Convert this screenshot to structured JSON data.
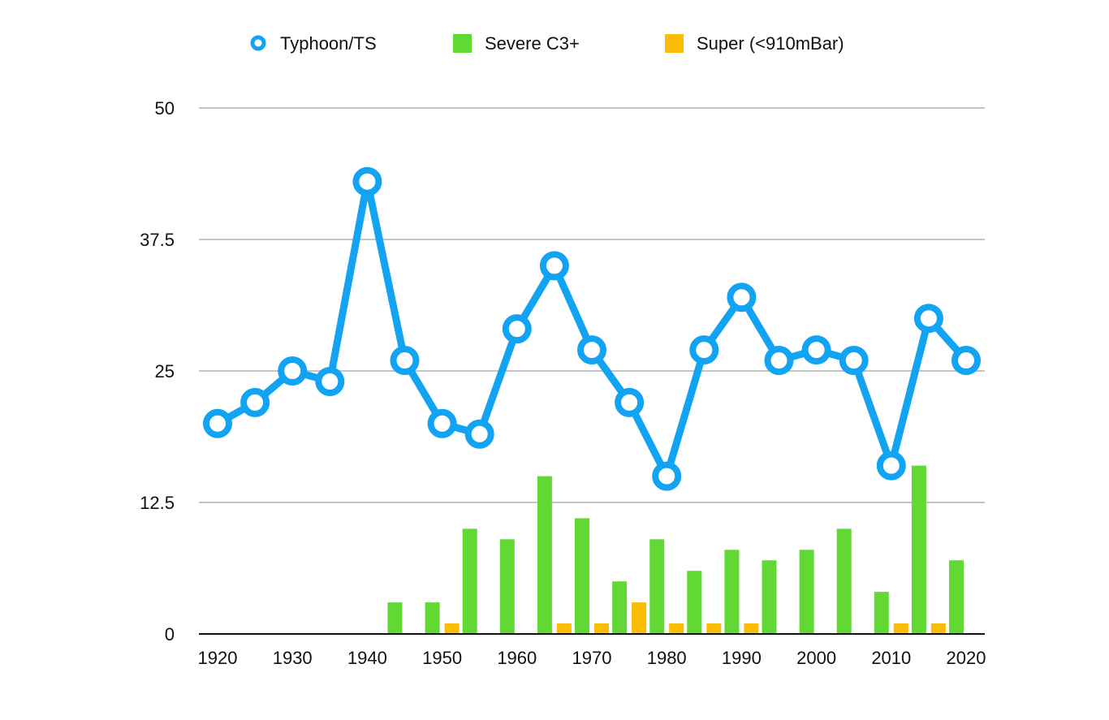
{
  "chart_data": {
    "type": "bar",
    "x": [
      1920,
      1925,
      1930,
      1935,
      1940,
      1945,
      1950,
      1955,
      1960,
      1965,
      1970,
      1975,
      1980,
      1985,
      1990,
      1995,
      2000,
      2005,
      2010,
      2015,
      2020
    ],
    "x_tick_labels": [
      "1920",
      "1930",
      "1940",
      "1950",
      "1960",
      "1970",
      "1980",
      "1990",
      "2000",
      "2010",
      "2020"
    ],
    "y_tick_labels": [
      "0",
      "12.5",
      "25",
      "37.5",
      "50"
    ],
    "ylim": [
      0,
      50
    ],
    "grid": true,
    "legend_position": "top",
    "series": [
      {
        "name": "Typhoon/TS",
        "kind": "line",
        "color": "#12A3F2",
        "values": [
          20,
          22,
          25,
          24,
          43,
          26,
          20,
          19,
          29,
          35,
          27,
          22,
          15,
          27,
          32,
          26,
          27,
          26,
          16,
          30,
          26
        ]
      },
      {
        "name": "Severe C3+",
        "kind": "bar",
        "color": "#62D835",
        "values": [
          0,
          0,
          0,
          0,
          0,
          3,
          3,
          10,
          9,
          15,
          11,
          5,
          9,
          6,
          8,
          7,
          8,
          10,
          4,
          16,
          7
        ]
      },
      {
        "name": "Super (<910mBar)",
        "kind": "bar",
        "color": "#FBBC04",
        "values": [
          0,
          0,
          0,
          0,
          0,
          0,
          1,
          0,
          0,
          1,
          1,
          3,
          1,
          1,
          1,
          0,
          0,
          0,
          1,
          1,
          0
        ]
      }
    ]
  }
}
